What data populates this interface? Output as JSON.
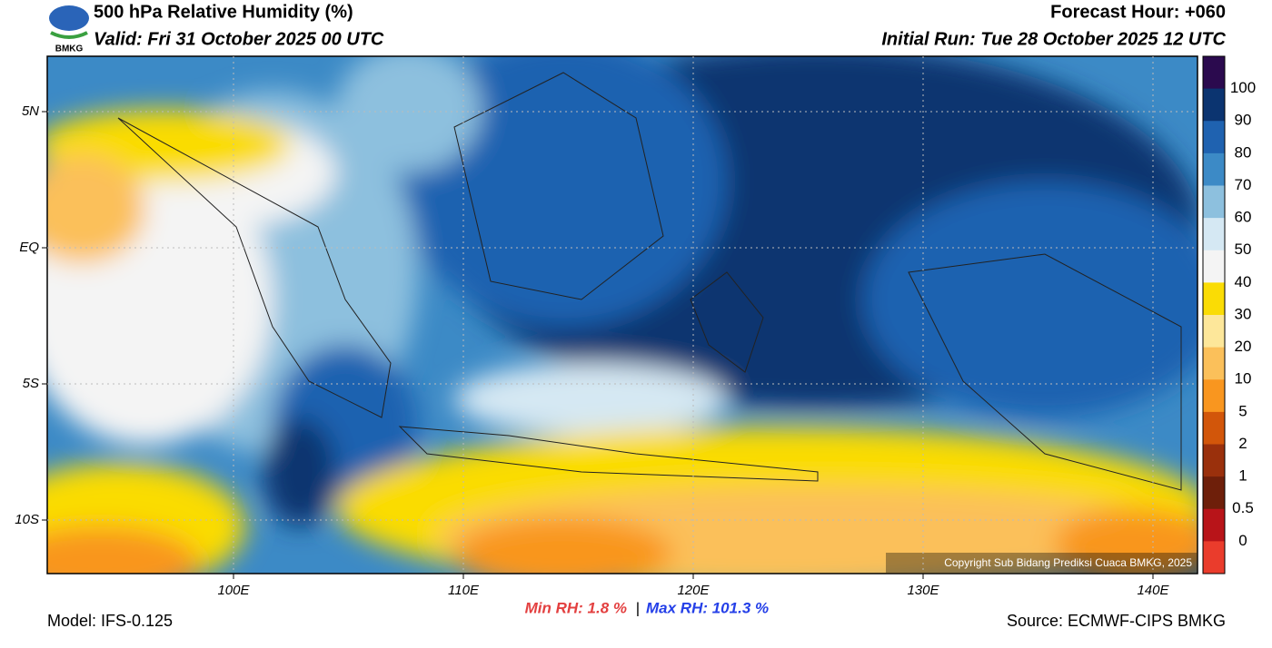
{
  "header": {
    "logo": "BMKG",
    "title": "500 hPa Relative Humidity (%)",
    "valid": "Valid: Fri 31 October 2025 00 UTC",
    "forecast_hour": "Forecast Hour: +060",
    "initial_run": "Initial Run: Tue 28 October 2025 12 UTC"
  },
  "map": {
    "lat_labels": [
      "5N",
      "EQ",
      "5S",
      "10S"
    ],
    "lon_labels": [
      "100E",
      "110E",
      "120E",
      "130E",
      "140E"
    ],
    "copyright": "Copyright Sub Bidang Prediksi Cuaca BMKG, 2025"
  },
  "colorbar": {
    "labels": [
      "100",
      "90",
      "80",
      "70",
      "60",
      "50",
      "40",
      "30",
      "20",
      "10",
      "5",
      "2",
      "1",
      "0.5",
      "0"
    ],
    "colors": [
      "#2b0a4e",
      "#0b3470",
      "#1f62b0",
      "#3c8ac6",
      "#8dc0de",
      "#d5e8f3",
      "#f4f4f4",
      "#fadc05",
      "#fde79a",
      "#fbc05a",
      "#f9961f",
      "#d2560a",
      "#9a300c",
      "#6e1f0a",
      "#b81419",
      "#ea3c2c"
    ]
  },
  "footer": {
    "model": "Model: IFS-0.125",
    "min_rh": "Min RH:   1.8 %",
    "separator": "|",
    "max_rh": "Max RH: 101.3 %",
    "source": "Source: ECMWF-CIPS BMKG"
  }
}
